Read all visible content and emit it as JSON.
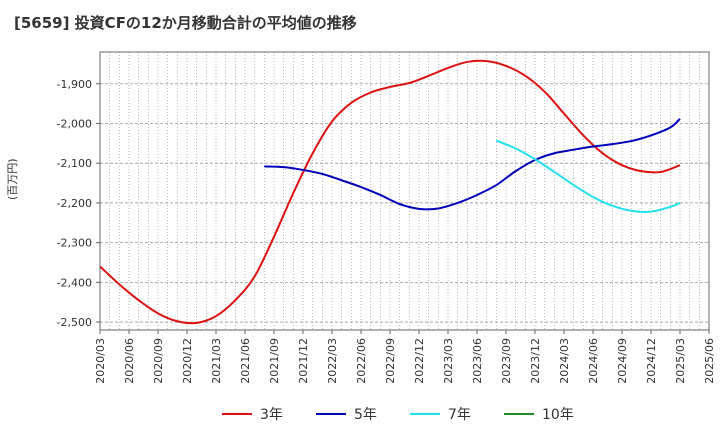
{
  "title": "[5659]  投資CFの12か月移動合計の平均値の推移",
  "ylabel": "(百万円)",
  "chart_data": {
    "type": "line",
    "title": "[5659]  投資CFの12か月移動合計の平均値の推移",
    "ylabel": "(百万円)",
    "xlabel": "",
    "ylim": [
      -2520,
      -1820
    ],
    "yticks": [
      -2500,
      -2400,
      -2300,
      -2200,
      -2100,
      -2000,
      -1900
    ],
    "ytick_labels": [
      "-2,500",
      "-2,400",
      "-2,300",
      "-2,200",
      "-2,100",
      "-2,000",
      "-1,900"
    ],
    "xlim": [
      "2020-03",
      "2025-06"
    ],
    "xtick_labels": [
      "2020/03",
      "2020/06",
      "2020/09",
      "2020/12",
      "2021/03",
      "2021/06",
      "2021/09",
      "2021/12",
      "2022/03",
      "2022/06",
      "2022/09",
      "2022/12",
      "2023/03",
      "2023/06",
      "2023/09",
      "2023/12",
      "2024/03",
      "2024/06",
      "2024/09",
      "2024/12",
      "2025/03",
      "2025/06"
    ],
    "grid": true,
    "legend_position": "bottom",
    "series": [
      {
        "name": "3年",
        "color": "#dd1111",
        "points": [
          [
            "2020-03",
            -2360
          ],
          [
            "2020-05",
            -2405
          ],
          [
            "2020-07",
            -2445
          ],
          [
            "2020-09",
            -2478
          ],
          [
            "2020-11",
            -2498
          ],
          [
            "2021-01",
            -2502
          ],
          [
            "2021-03",
            -2485
          ],
          [
            "2021-05",
            -2445
          ],
          [
            "2021-07",
            -2385
          ],
          [
            "2021-09",
            -2285
          ],
          [
            "2021-11",
            -2175
          ],
          [
            "2022-01",
            -2075
          ],
          [
            "2022-03",
            -1995
          ],
          [
            "2022-05",
            -1948
          ],
          [
            "2022-07",
            -1922
          ],
          [
            "2022-09",
            -1908
          ],
          [
            "2022-11",
            -1898
          ],
          [
            "2023-01",
            -1880
          ],
          [
            "2023-03",
            -1860
          ],
          [
            "2023-05",
            -1845
          ],
          [
            "2023-07",
            -1843
          ],
          [
            "2023-09",
            -1855
          ],
          [
            "2023-11",
            -1880
          ],
          [
            "2024-01",
            -1920
          ],
          [
            "2024-03",
            -1975
          ],
          [
            "2024-05",
            -2030
          ],
          [
            "2024-07",
            -2075
          ],
          [
            "2024-09",
            -2105
          ],
          [
            "2024-11",
            -2120
          ],
          [
            "2025-01",
            -2122
          ],
          [
            "2025-03",
            -2105
          ]
        ]
      },
      {
        "name": "5年",
        "color": "#0000bb",
        "points": [
          [
            "2021-08",
            -2108
          ],
          [
            "2021-10",
            -2110
          ],
          [
            "2021-12",
            -2117
          ],
          [
            "2022-02",
            -2127
          ],
          [
            "2022-04",
            -2143
          ],
          [
            "2022-06",
            -2160
          ],
          [
            "2022-08",
            -2180
          ],
          [
            "2022-10",
            -2203
          ],
          [
            "2022-12",
            -2215
          ],
          [
            "2023-02",
            -2214
          ],
          [
            "2023-04",
            -2200
          ],
          [
            "2023-06",
            -2180
          ],
          [
            "2023-08",
            -2155
          ],
          [
            "2023-10",
            -2120
          ],
          [
            "2023-12",
            -2092
          ],
          [
            "2024-02",
            -2075
          ],
          [
            "2024-04",
            -2066
          ],
          [
            "2024-06",
            -2058
          ],
          [
            "2024-08",
            -2052
          ],
          [
            "2024-10",
            -2044
          ],
          [
            "2024-12",
            -2030
          ],
          [
            "2025-02",
            -2010
          ],
          [
            "2025-03",
            -1988
          ]
        ]
      },
      {
        "name": "7年",
        "color": "#22e0ee",
        "points": [
          [
            "2023-08",
            -2043
          ],
          [
            "2023-10",
            -2063
          ],
          [
            "2023-12",
            -2090
          ],
          [
            "2024-02",
            -2122
          ],
          [
            "2024-04",
            -2155
          ],
          [
            "2024-06",
            -2185
          ],
          [
            "2024-08",
            -2207
          ],
          [
            "2024-10",
            -2220
          ],
          [
            "2024-12",
            -2222
          ],
          [
            "2025-02",
            -2210
          ],
          [
            "2025-03",
            -2200
          ]
        ]
      },
      {
        "name": "10年",
        "color": "#228822",
        "points": []
      }
    ]
  }
}
